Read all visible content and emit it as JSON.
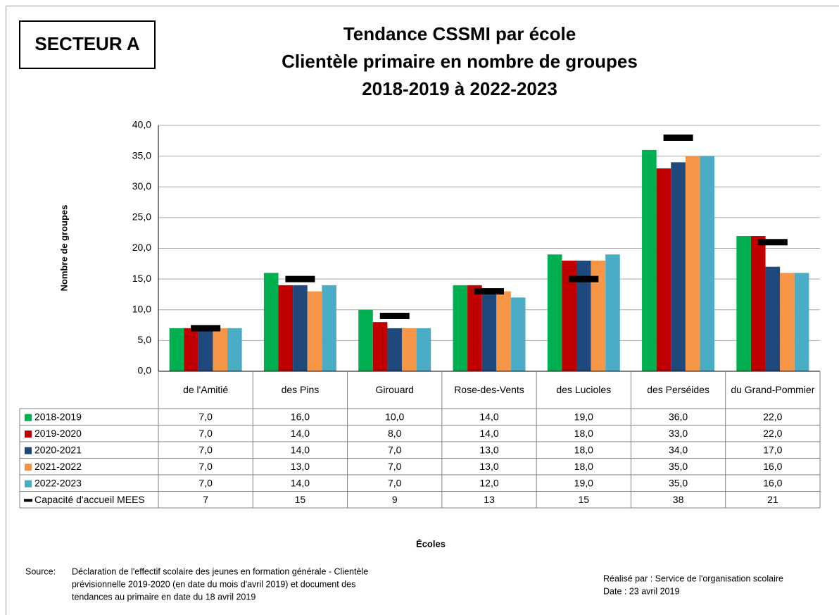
{
  "badge": "SECTEUR A",
  "chart_data": {
    "type": "bar",
    "title": "Tendance CSSMI par école",
    "subtitle": [
      "Clientèle primaire en nombre de groupes",
      "2018-2019 à 2022-2023"
    ],
    "ylabel": "Nombre de groupes",
    "xlabel": "Écoles",
    "categories": [
      "de l'Amitié",
      "des Pins",
      "Girouard",
      "Rose-des-Vents",
      "des Lucioles",
      "des Perséides",
      "du Grand-Pommier"
    ],
    "ylim": [
      0,
      40
    ],
    "yticks": [
      {
        "value": 0,
        "label": "0,0"
      },
      {
        "value": 5,
        "label": "5,0"
      },
      {
        "value": 10,
        "label": "10,0"
      },
      {
        "value": 15,
        "label": "15,0"
      },
      {
        "value": 20,
        "label": "20,0"
      },
      {
        "value": 25,
        "label": "25,0"
      },
      {
        "value": 30,
        "label": "30,0"
      },
      {
        "value": 35,
        "label": "35,0"
      },
      {
        "value": 40,
        "label": "40,0"
      }
    ],
    "grid": true,
    "series": [
      {
        "name": "2018-2019",
        "color": "#00b050",
        "values": [
          7,
          16,
          10,
          14,
          19,
          36,
          22
        ],
        "value_labels": [
          "7,0",
          "16,0",
          "10,0",
          "14,0",
          "19,0",
          "36,0",
          "22,0"
        ]
      },
      {
        "name": "2019-2020",
        "color": "#c00000",
        "values": [
          7,
          14,
          8,
          14,
          18,
          33,
          22
        ],
        "value_labels": [
          "7,0",
          "14,0",
          "8,0",
          "14,0",
          "18,0",
          "33,0",
          "22,0"
        ]
      },
      {
        "name": "2020-2021",
        "color": "#1f497d",
        "values": [
          7,
          14,
          7,
          13,
          18,
          34,
          17
        ],
        "value_labels": [
          "7,0",
          "14,0",
          "7,0",
          "13,0",
          "18,0",
          "34,0",
          "17,0"
        ]
      },
      {
        "name": "2021-2022",
        "color": "#f79646",
        "values": [
          7,
          13,
          7,
          13,
          18,
          35,
          16
        ],
        "value_labels": [
          "7,0",
          "13,0",
          "7,0",
          "13,0",
          "18,0",
          "35,0",
          "16,0"
        ]
      },
      {
        "name": "2022-2023",
        "color": "#4bacc6",
        "values": [
          7,
          14,
          7,
          12,
          19,
          35,
          16
        ],
        "value_labels": [
          "7,0",
          "14,0",
          "7,0",
          "12,0",
          "19,0",
          "35,0",
          "16,0"
        ]
      },
      {
        "name": "Capacité d'accueil MEES",
        "color": "#000000",
        "style": "dash",
        "values": [
          7,
          15,
          9,
          13,
          15,
          38,
          21
        ]
      }
    ]
  },
  "footer": {
    "source_label": "Source:",
    "source_lines": [
      "Déclaration de l'effectif scolaire des jeunes en formation générale - Clientèle",
      "prévisionnelle 2019-2020 (en date du mois d'avril 2019) et document des",
      "tendances au primaire en date du 18 avril 2019"
    ],
    "credit_lines": [
      "Réalisé par : Service de l'organisation scolaire",
      "Date : 23 avril 2019"
    ]
  }
}
